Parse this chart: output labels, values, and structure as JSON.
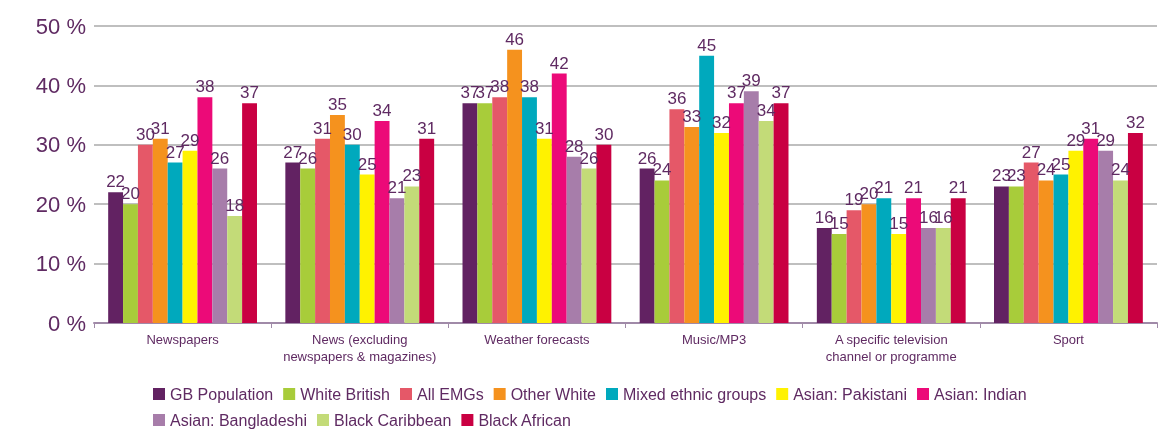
{
  "chart_data": {
    "type": "bar",
    "categories": [
      "Newspapers",
      "News (excluding\nnewspapers & magazines)",
      "Weather forecasts",
      "Music/MP3",
      "A specific television\nchannel or programme",
      "Sport"
    ],
    "series": [
      {
        "name": "GB Population",
        "color": "#622262",
        "values": [
          22,
          27,
          37,
          26,
          16,
          23
        ]
      },
      {
        "name": "White British",
        "color": "#a8cc3a",
        "values": [
          20,
          26,
          37,
          24,
          15,
          23
        ]
      },
      {
        "name": "All EMGs",
        "color": "#e55868",
        "values": [
          30,
          31,
          38,
          36,
          19,
          27
        ]
      },
      {
        "name": "Other White",
        "color": "#f5921e",
        "values": [
          31,
          35,
          46,
          33,
          20,
          24
        ]
      },
      {
        "name": "Mixed ethnic groups",
        "color": "#00a9bd",
        "values": [
          27,
          30,
          38,
          45,
          21,
          25
        ]
      },
      {
        "name": "Asian: Pakistani",
        "color": "#fff200",
        "values": [
          29,
          25,
          31,
          32,
          15,
          29
        ]
      },
      {
        "name": "Asian: Indian",
        "color": "#ec0a78",
        "values": [
          38,
          34,
          42,
          37,
          21,
          31
        ]
      },
      {
        "name": "Asian: Bangladeshi",
        "color": "#a77daa",
        "values": [
          26,
          21,
          28,
          39,
          16,
          29
        ]
      },
      {
        "name": "Black Caribbean",
        "color": "#c3db78",
        "values": [
          18,
          23,
          26,
          34,
          16,
          24
        ]
      },
      {
        "name": "Black African",
        "color": "#c90042",
        "values": [
          37,
          31,
          30,
          37,
          21,
          32
        ]
      }
    ],
    "ylim": [
      0,
      50
    ],
    "yticks": [
      {
        "value": 0,
        "label": "0 %"
      },
      {
        "value": 10,
        "label": "10 %"
      },
      {
        "value": 20,
        "label": "20 %"
      },
      {
        "value": 30,
        "label": "30 %"
      },
      {
        "value": 40,
        "label": "40 %"
      },
      {
        "value": 50,
        "label": "50 %"
      }
    ],
    "grid": "y",
    "legend": "bottom",
    "data_labels": true
  }
}
